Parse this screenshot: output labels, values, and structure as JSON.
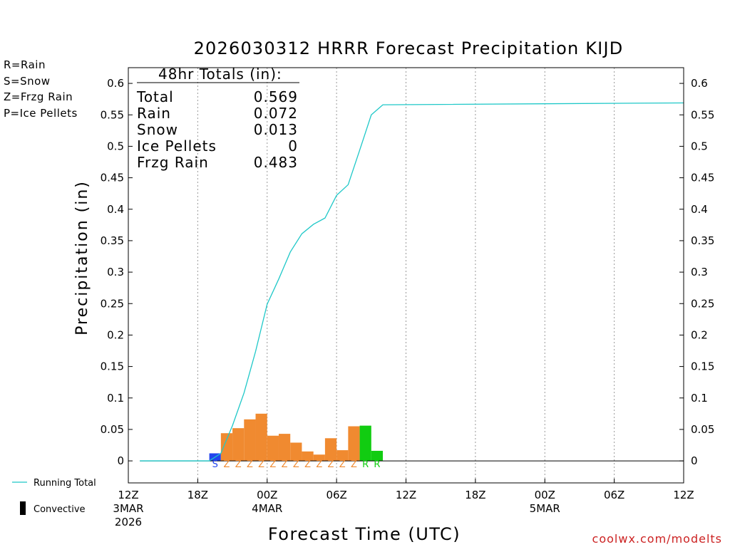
{
  "chart_data": {
    "type": "bar",
    "title": "2026030312 HRRR Forecast Precipitation KIJD",
    "xlabel": "Forecast Time (UTC)",
    "ylabel": "Precipitation (in)",
    "ylim": [
      -0.035,
      0.625
    ],
    "yticks": [
      0,
      0.05,
      0.1,
      0.15,
      0.2,
      0.25,
      0.3,
      0.35,
      0.4,
      0.45,
      0.5,
      0.55,
      0.6
    ],
    "ytick_labels": [
      "0",
      "0.05",
      "0.1",
      "0.15",
      "0.2",
      "0.25",
      "0.3",
      "0.35",
      "0.4",
      "0.45",
      "0.5",
      "0.55",
      "0.6"
    ],
    "x_units": "forecast hour",
    "xlim": [
      0,
      48
    ],
    "xticks": [
      {
        "hour": 0,
        "label": "12Z",
        "date": "3MAR",
        "year": "2026"
      },
      {
        "hour": 6,
        "label": "18Z"
      },
      {
        "hour": 12,
        "label": "00Z",
        "date": "4MAR"
      },
      {
        "hour": 18,
        "label": "06Z"
      },
      {
        "hour": 24,
        "label": "12Z"
      },
      {
        "hour": 30,
        "label": "18Z"
      },
      {
        "hour": 36,
        "label": "00Z",
        "date": "5MAR"
      },
      {
        "hour": 42,
        "label": "06Z"
      },
      {
        "hour": 48,
        "label": "12Z"
      }
    ],
    "grid_hours": [
      6,
      12,
      18,
      24,
      30,
      36,
      42
    ],
    "ptype_colors": {
      "S": "#2244ee",
      "Z": "#f08a30",
      "R": "#11cc11",
      "P": "#ee33aa"
    },
    "bars": [
      {
        "hour": 8,
        "value": 0.012,
        "type": "S"
      },
      {
        "hour": 9,
        "value": 0.044,
        "type": "Z"
      },
      {
        "hour": 10,
        "value": 0.052,
        "type": "Z"
      },
      {
        "hour": 11,
        "value": 0.066,
        "type": "Z"
      },
      {
        "hour": 12,
        "value": 0.075,
        "type": "Z"
      },
      {
        "hour": 13,
        "value": 0.04,
        "type": "Z"
      },
      {
        "hour": 14,
        "value": 0.043,
        "type": "Z"
      },
      {
        "hour": 15,
        "value": 0.029,
        "type": "Z"
      },
      {
        "hour": 16,
        "value": 0.015,
        "type": "Z"
      },
      {
        "hour": 17,
        "value": 0.01,
        "type": "Z"
      },
      {
        "hour": 18,
        "value": 0.036,
        "type": "Z"
      },
      {
        "hour": 19,
        "value": 0.017,
        "type": "Z"
      },
      {
        "hour": 20,
        "value": 0.055,
        "type": "Z"
      },
      {
        "hour": 21,
        "value": 0.056,
        "type": "R"
      },
      {
        "hour": 22,
        "value": 0.016,
        "type": "R"
      }
    ],
    "running_total": {
      "name": "Running Total",
      "color": "#1fc8c8",
      "hours": [
        1,
        7,
        8,
        9,
        10,
        11,
        12,
        13,
        14,
        15,
        16,
        17,
        18,
        19,
        20,
        21,
        22,
        48
      ],
      "values": [
        0,
        0,
        0.012,
        0.056,
        0.108,
        0.174,
        0.249,
        0.289,
        0.332,
        0.361,
        0.376,
        0.386,
        0.422,
        0.439,
        0.494,
        0.55,
        0.566,
        0.569
      ]
    }
  },
  "ptype_legend": [
    {
      "label": "R=Rain",
      "color": "#11cc11"
    },
    {
      "label": "S=Snow",
      "color": "#2244ee"
    },
    {
      "label": "Z=Frzg Rain",
      "color": "#f08a30"
    },
    {
      "label": "P=Ice Pellets",
      "color": "#ee33aa"
    }
  ],
  "totals": {
    "header": "48hr Totals (in):",
    "rows": [
      {
        "label": "Total",
        "value": "0.569"
      },
      {
        "label": "Rain",
        "value": "0.072"
      },
      {
        "label": "Snow",
        "value": "0.013"
      },
      {
        "label": "Ice Pellets",
        "value": "0"
      },
      {
        "label": "Frzg Rain",
        "value": "0.483"
      }
    ]
  },
  "bottom_legend": {
    "running_total": "Running Total",
    "convective": "Convective"
  },
  "credit": "coolwx.com/modelts"
}
